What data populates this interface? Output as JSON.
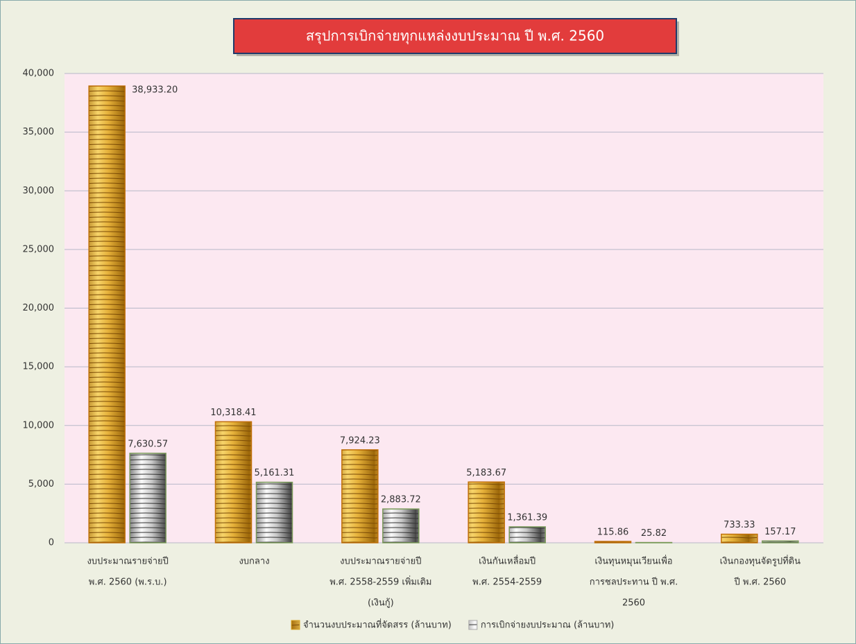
{
  "chart_data": {
    "type": "bar",
    "title": "สรุปการเบิกจ่ายทุกแหล่งงบประมาณ ปี พ.ศ. 2560",
    "categories": [
      [
        "งบประมาณรายจ่ายปี",
        "พ.ศ. 2560 (พ.ร.บ.)"
      ],
      [
        "งบกลาง"
      ],
      [
        "งบประมาณรายจ่ายปี",
        "พ.ศ. 2558-2559 เพิ่มเติม",
        "(เงินกู้)"
      ],
      [
        "เงินกันเหลื่อมปี",
        "พ.ศ. 2554-2559"
      ],
      [
        "เงินทุนหมุนเวียนเพื่อ",
        "การชลประทาน ปี พ.ศ.",
        "2560"
      ],
      [
        "เงินกองทุนจัดรูปที่ดิน",
        "ปี พ.ศ. 2560"
      ]
    ],
    "series": [
      {
        "name": "จำนวนงบประมาณที่จัดสรร (ล้านบาท)",
        "color": "#d9a520",
        "values": [
          38933.2,
          10318.41,
          7924.23,
          5183.67,
          115.86,
          733.33
        ],
        "value_labels": [
          "38,933.20",
          "10,318.41",
          "7,924.23",
          "5,183.67",
          "115.86",
          "733.33"
        ]
      },
      {
        "name": "การเบิกจ่ายงบประมาณ (ล้านบาท)",
        "color": "#a9a9a9",
        "values": [
          7630.57,
          5161.31,
          2883.72,
          1361.39,
          25.82,
          157.17
        ],
        "value_labels": [
          "7,630.57",
          "5,161.31",
          "2,883.72",
          "1,361.39",
          "25.82",
          "157.17"
        ]
      }
    ],
    "ylim": [
      0,
      40000
    ],
    "yticks": [
      0,
      {
        "value": 5000,
        "label": "5,000"
      },
      {
        "value": 10000,
        "label": "10,000"
      },
      {
        "value": 15000,
        "label": "15,000"
      },
      {
        "value": 20000,
        "label": "20,000"
      },
      {
        "value": 25000,
        "label": "25,000"
      },
      {
        "value": 30000,
        "label": "30,000"
      },
      {
        "value": 35000,
        "label": "35,000"
      },
      {
        "value": 40000,
        "label": "40,000"
      }
    ],
    "grid": true
  }
}
